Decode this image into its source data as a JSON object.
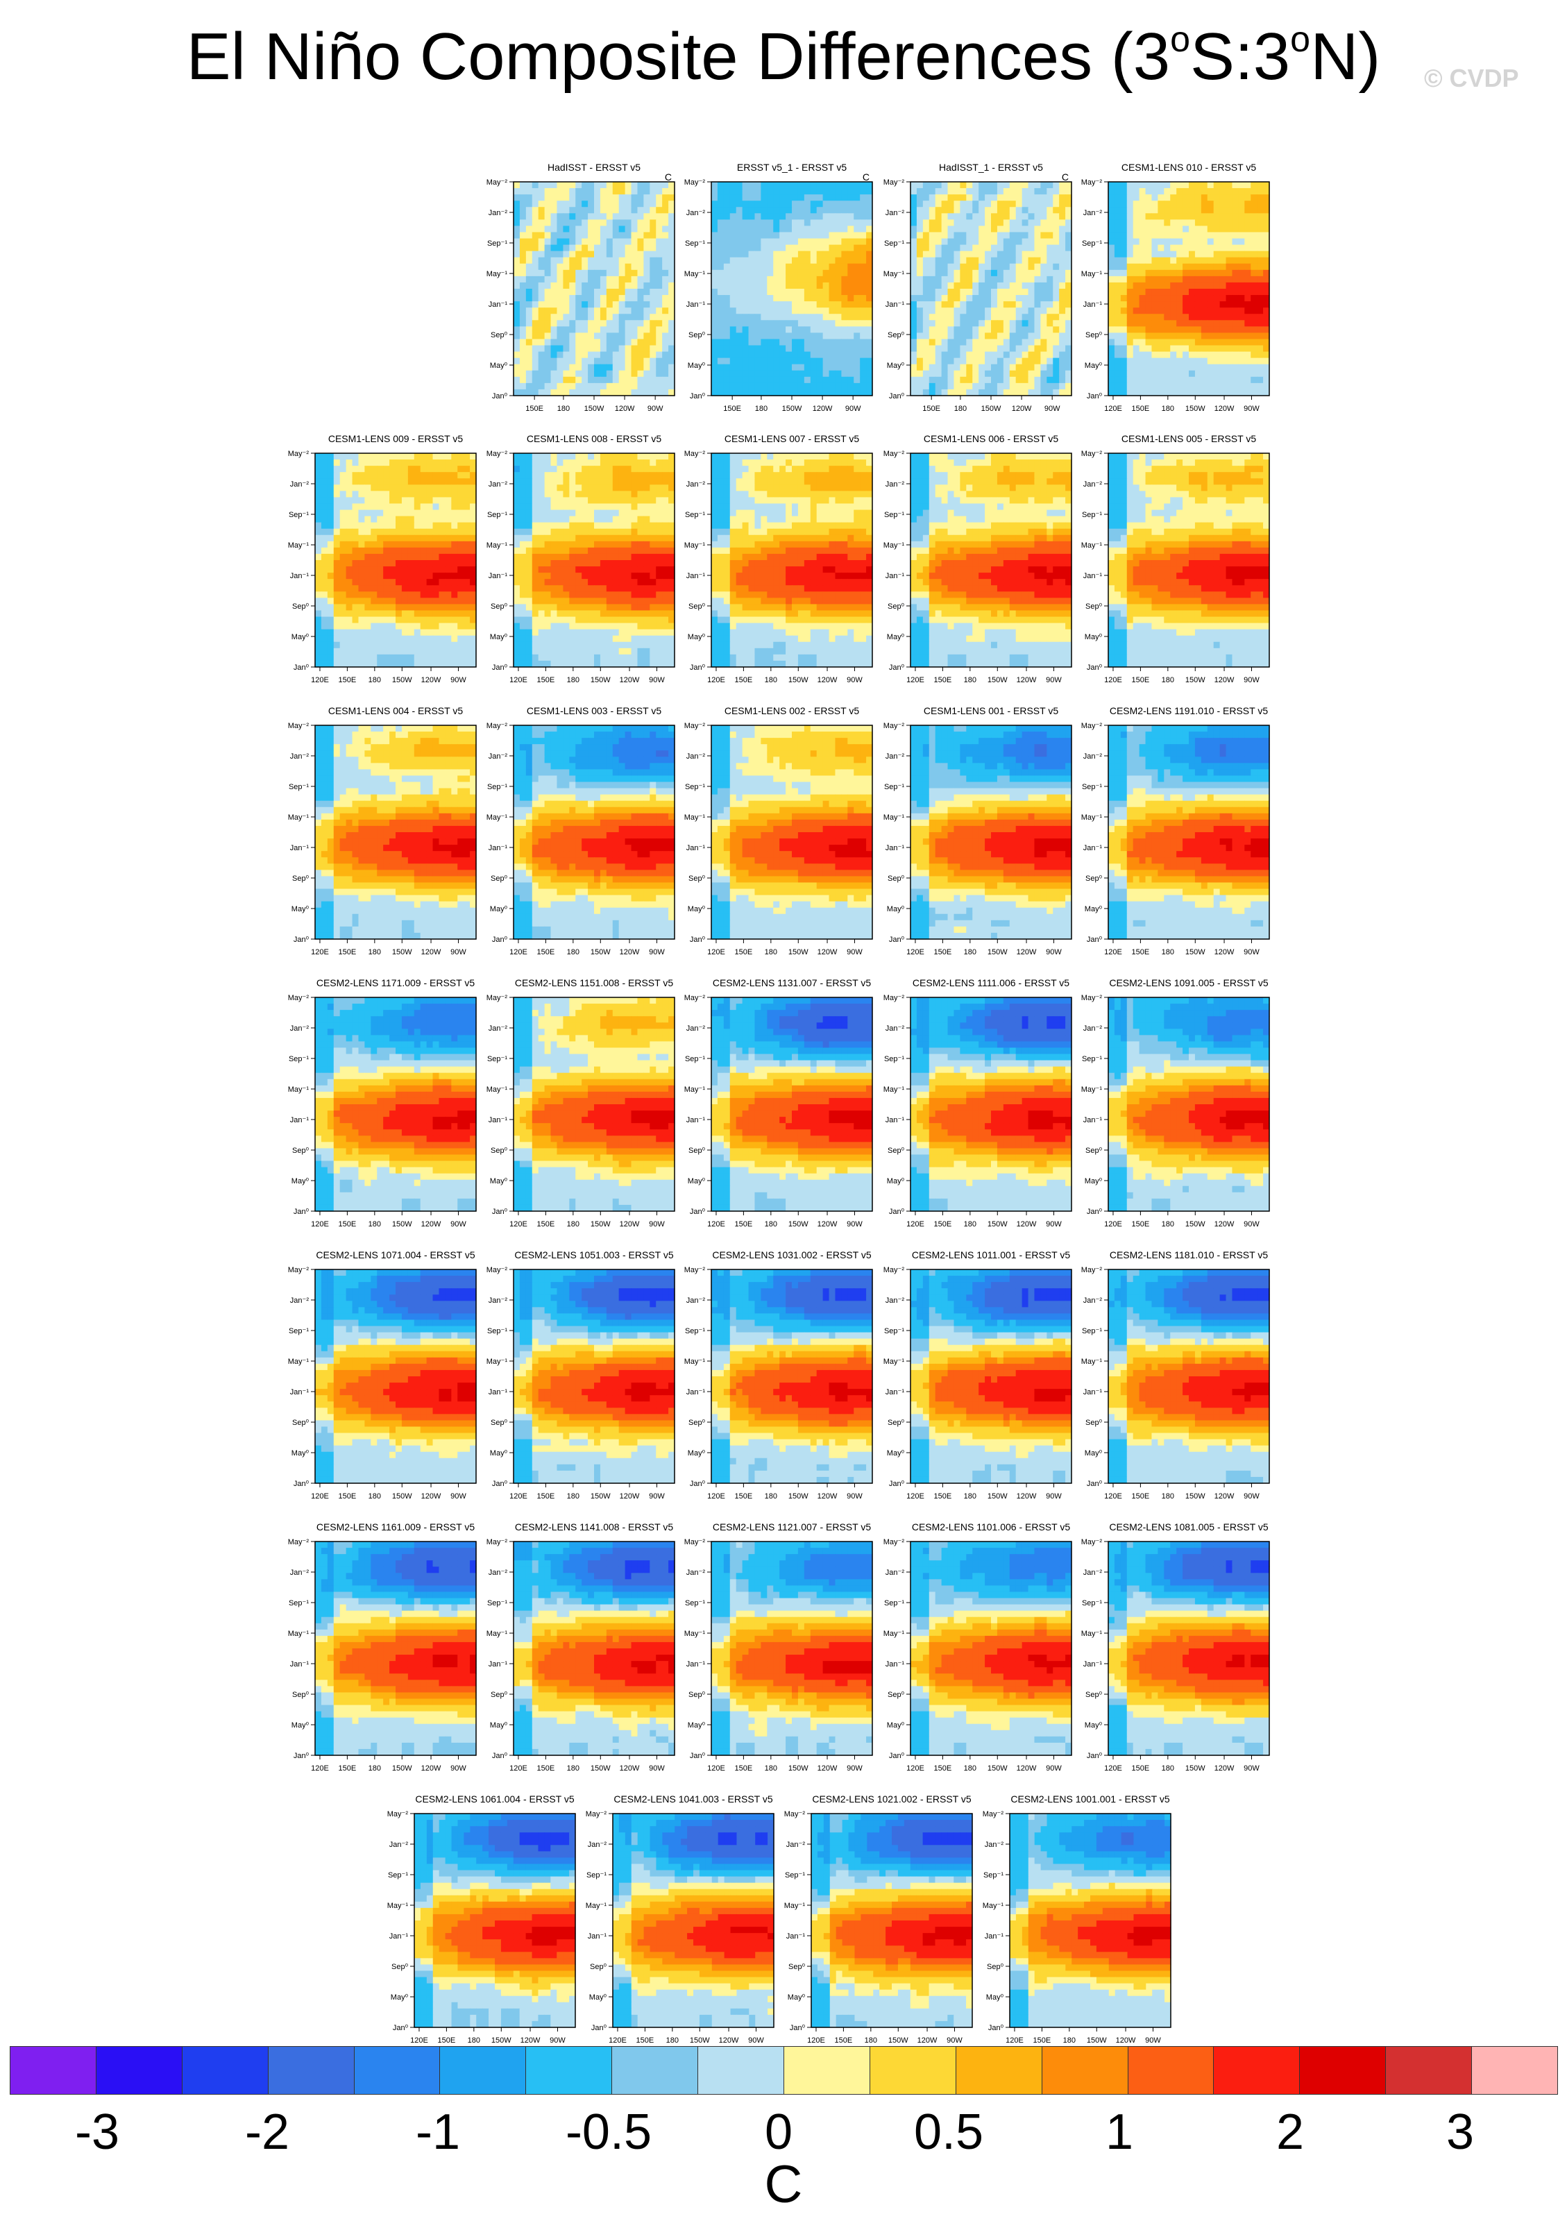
{
  "page": {
    "title_text": "El Niño Composite Differences (3",
    "title_sup1": "o",
    "title_mid": "S:3",
    "title_sup2": "o",
    "title_end": "N)",
    "watermark": "© CVDP"
  },
  "chart_data": {
    "type": "heatmap",
    "layout": "panel-grid",
    "units": "C",
    "y_ticks": [
      "May⁻²",
      "Jan⁻²",
      "Sep⁻¹",
      "May⁻¹",
      "Jan⁻¹",
      "Sep⁰",
      "May⁰",
      "Jan⁰"
    ],
    "x_ticks_full": [
      "120E",
      "150E",
      "180",
      "150W",
      "120W",
      "90W"
    ],
    "x_ticks_obs": [
      "150E",
      "180",
      "150W",
      "120W",
      "90W"
    ],
    "colorbar": {
      "colors": [
        "#7f1ff0",
        "#2a0ff5",
        "#1f3ef0",
        "#3a6ee0",
        "#2a84ef",
        "#1fa3f0",
        "#27bff4",
        "#80c8ec",
        "#b8e0f2",
        "#fff69a",
        "#fdd835",
        "#fdb310",
        "#fd8c0a",
        "#fc5f14",
        "#fb1e10",
        "#de0000",
        "#d43030",
        "#ffb4b4"
      ],
      "labels": [
        "-3",
        "-2",
        "-1",
        "-0.5",
        "0",
        "0.5",
        "1",
        "2",
        "3"
      ]
    },
    "panels": [
      {
        "title": "HadISST - ERSST v5",
        "unit": "C",
        "pattern": 1
      },
      {
        "title": "ERSST v5_1 - ERSST v5",
        "unit": "C",
        "pattern": 2
      },
      {
        "title": "HadISST_1 - ERSST v5",
        "unit": "C",
        "pattern": 1
      },
      {
        "title": "CESM1-LENS 010 - ERSST v5",
        "unit": "",
        "pattern": 3
      },
      {
        "title": "CESM1-LENS 009 - ERSST v5",
        "unit": "",
        "pattern": 3
      },
      {
        "title": "CESM1-LENS 008 - ERSST v5",
        "unit": "",
        "pattern": 3
      },
      {
        "title": "CESM1-LENS 007 - ERSST v5",
        "unit": "",
        "pattern": 3
      },
      {
        "title": "CESM1-LENS 006 - ERSST v5",
        "unit": "",
        "pattern": 3
      },
      {
        "title": "CESM1-LENS 005 - ERSST v5",
        "unit": "",
        "pattern": 3
      },
      {
        "title": "CESM1-LENS 004 - ERSST v5",
        "unit": "",
        "pattern": 3
      },
      {
        "title": "CESM1-LENS 003 - ERSST v5",
        "unit": "",
        "pattern": 4
      },
      {
        "title": "CESM1-LENS 002 - ERSST v5",
        "unit": "",
        "pattern": 3
      },
      {
        "title": "CESM1-LENS 001 - ERSST v5",
        "unit": "",
        "pattern": 4
      },
      {
        "title": "CESM2-LENS 1191.010 - ERSST v5",
        "unit": "",
        "pattern": 4
      },
      {
        "title": "CESM2-LENS 1171.009 - ERSST v5",
        "unit": "",
        "pattern": 4
      },
      {
        "title": "CESM2-LENS 1151.008 - ERSST v5",
        "unit": "",
        "pattern": 3
      },
      {
        "title": "CESM2-LENS 1131.007 - ERSST v5",
        "unit": "",
        "pattern": 5
      },
      {
        "title": "CESM2-LENS 1111.006 - ERSST v5",
        "unit": "",
        "pattern": 5
      },
      {
        "title": "CESM2-LENS 1091.005 - ERSST v5",
        "unit": "",
        "pattern": 4
      },
      {
        "title": "CESM2-LENS 1071.004 - ERSST v5",
        "unit": "",
        "pattern": 5
      },
      {
        "title": "CESM2-LENS 1051.003 - ERSST v5",
        "unit": "",
        "pattern": 5
      },
      {
        "title": "CESM2-LENS 1031.002 - ERSST v5",
        "unit": "",
        "pattern": 5
      },
      {
        "title": "CESM2-LENS 1011.001 - ERSST v5",
        "unit": "",
        "pattern": 5
      },
      {
        "title": "CESM2-LENS 1181.010 - ERSST v5",
        "unit": "",
        "pattern": 5
      },
      {
        "title": "CESM2-LENS 1161.009 - ERSST v5",
        "unit": "",
        "pattern": 5
      },
      {
        "title": "CESM2-LENS 1141.008 - ERSST v5",
        "unit": "",
        "pattern": 5
      },
      {
        "title": "CESM2-LENS 1121.007 - ERSST v5",
        "unit": "",
        "pattern": 4
      },
      {
        "title": "CESM2-LENS 1101.006 - ERSST v5",
        "unit": "",
        "pattern": 4
      },
      {
        "title": "CESM2-LENS 1081.005 - ERSST v5",
        "unit": "",
        "pattern": 5
      },
      {
        "title": "CESM2-LENS 1061.004 - ERSST v5",
        "unit": "",
        "pattern": 5
      },
      {
        "title": "CESM2-LENS 1041.003 - ERSST v5",
        "unit": "",
        "pattern": 5
      },
      {
        "title": "CESM2-LENS 1021.002 - ERSST v5",
        "unit": "",
        "pattern": 5
      },
      {
        "title": "CESM2-LENS 1001.001 - ERSST v5",
        "unit": "",
        "pattern": 4
      }
    ]
  }
}
